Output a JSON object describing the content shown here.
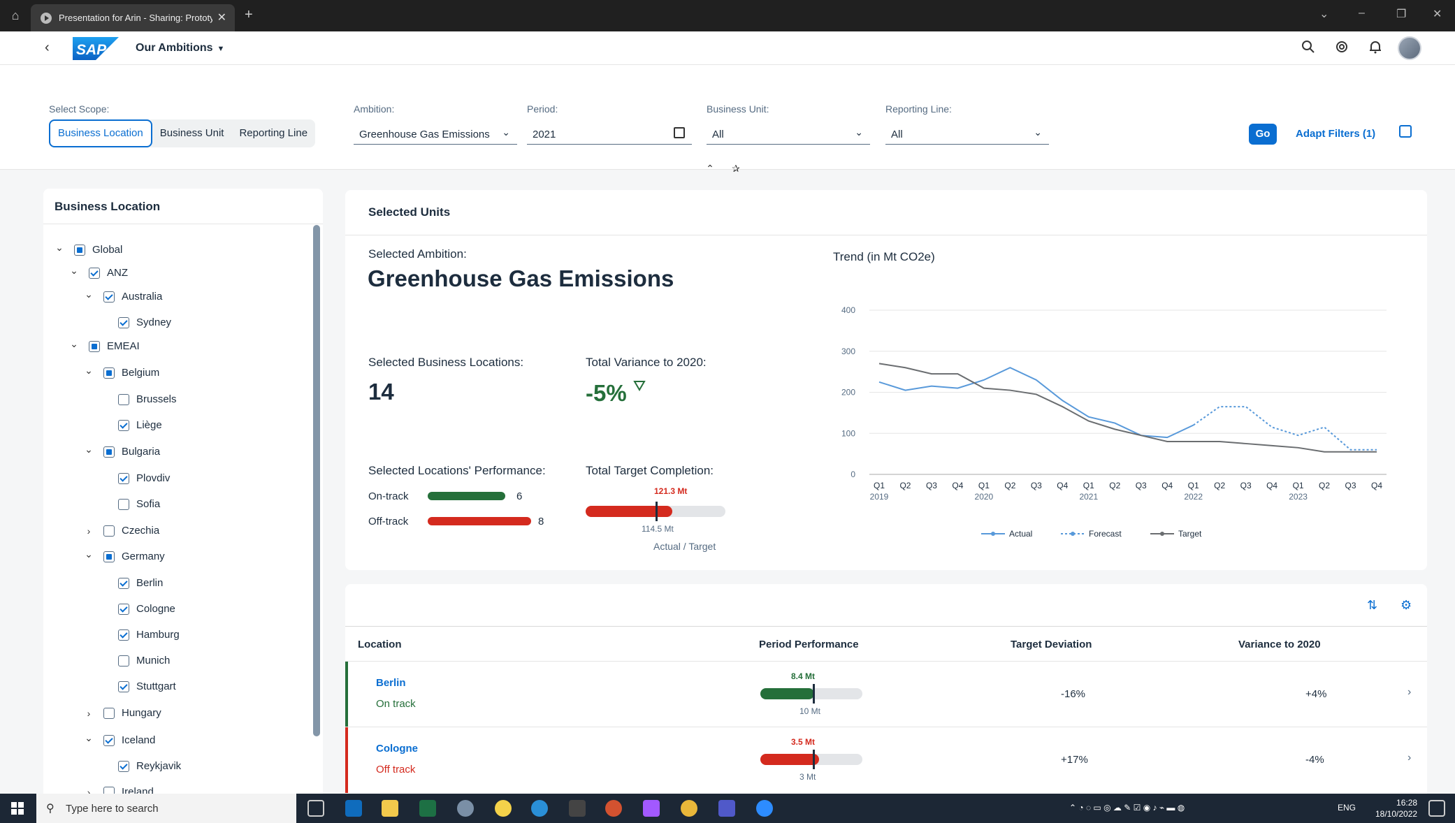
{
  "browser": {
    "tab_title": "Presentation for Arin - Sharing: Prototy",
    "home_icon": "home-icon",
    "close_glyph": "✕",
    "new_tab_glyph": "+"
  },
  "shell": {
    "back_glyph": "‹",
    "logo_text": "SAP",
    "app_title": "Our Ambitions",
    "icons": [
      "search-icon",
      "copilot-icon",
      "bell-icon"
    ]
  },
  "filters": {
    "scope_label": "Select Scope:",
    "scope_options": [
      "Business Location",
      "Business Unit",
      "Reporting Line"
    ],
    "ambition_label": "Ambition:",
    "ambition_value": "Greenhouse Gas Emissions",
    "period_label": "Period:",
    "period_value": "2021",
    "business_unit_label": "Business Unit:",
    "business_unit_value": "All",
    "reporting_line_label": "Reporting Line:",
    "reporting_line_value": "All",
    "go_label": "Go",
    "adapt_label": "Adapt Filters (1)"
  },
  "tree": {
    "title": "Business Location",
    "items": [
      {
        "label": "Global",
        "level": 0,
        "state": "partial",
        "expand": "open"
      },
      {
        "label": "ANZ",
        "level": 1,
        "state": "checked",
        "expand": "open"
      },
      {
        "label": "Australia",
        "level": 2,
        "state": "checked",
        "expand": "open"
      },
      {
        "label": "Sydney",
        "level": 3,
        "state": "checked",
        "expand": "none"
      },
      {
        "label": "EMEAI",
        "level": 1,
        "state": "partial",
        "expand": "open"
      },
      {
        "label": "Belgium",
        "level": 2,
        "state": "partial",
        "expand": "open"
      },
      {
        "label": "Brussels",
        "level": 3,
        "state": "unchecked",
        "expand": "none"
      },
      {
        "label": "Liège",
        "level": 3,
        "state": "checked",
        "expand": "none"
      },
      {
        "label": "Bulgaria",
        "level": 2,
        "state": "partial",
        "expand": "open"
      },
      {
        "label": "Plovdiv",
        "level": 3,
        "state": "checked",
        "expand": "none"
      },
      {
        "label": "Sofia",
        "level": 3,
        "state": "unchecked",
        "expand": "none"
      },
      {
        "label": "Czechia",
        "level": 2,
        "state": "unchecked",
        "expand": "closed"
      },
      {
        "label": "Germany",
        "level": 2,
        "state": "partial",
        "expand": "open"
      },
      {
        "label": "Berlin",
        "level": 3,
        "state": "checked",
        "expand": "none"
      },
      {
        "label": "Cologne",
        "level": 3,
        "state": "checked",
        "expand": "none"
      },
      {
        "label": "Hamburg",
        "level": 3,
        "state": "checked",
        "expand": "none"
      },
      {
        "label": "Munich",
        "level": 3,
        "state": "unchecked",
        "expand": "none"
      },
      {
        "label": "Stuttgart",
        "level": 3,
        "state": "checked",
        "expand": "none"
      },
      {
        "label": "Hungary",
        "level": 2,
        "state": "unchecked",
        "expand": "closed"
      },
      {
        "label": "Iceland",
        "level": 2,
        "state": "checked",
        "expand": "open"
      },
      {
        "label": "Reykjavik",
        "level": 3,
        "state": "checked",
        "expand": "none"
      },
      {
        "label": "Ireland",
        "level": 2,
        "state": "unchecked",
        "expand": "closed"
      }
    ]
  },
  "units": {
    "title": "Selected Units",
    "ambition_label": "Selected Ambition:",
    "ambition_name": "Greenhouse Gas Emissions",
    "locations_label": "Selected Business Locations:",
    "locations_value": "14",
    "variance_label": "Total Variance to 2020:",
    "variance_value": "-5%",
    "performance_label": "Selected Locations' Performance:",
    "on_track_label": "On-track",
    "on_track_value": 6,
    "off_track_label": "Off-track",
    "off_track_value": 8,
    "completion_label": "Total Target Completion:",
    "completion_actual": "121.3 Mt",
    "completion_target": "114.5 Mt",
    "completion_caption": "Actual / Target",
    "colors": {
      "green": "#256f3a",
      "red": "#d42a1e"
    }
  },
  "chart_data": {
    "type": "line",
    "title": "Trend (in Mt CO2e)",
    "x": [
      "Q1",
      "Q2",
      "Q3",
      "Q4",
      "Q1",
      "Q2",
      "Q3",
      "Q4",
      "Q1",
      "Q2",
      "Q3",
      "Q4",
      "Q1",
      "Q2",
      "Q3",
      "Q4",
      "Q1",
      "Q2",
      "Q3",
      "Q4"
    ],
    "years": [
      {
        "label": "2019",
        "index": 0
      },
      {
        "label": "2020",
        "index": 4
      },
      {
        "label": "2021",
        "index": 8
      },
      {
        "label": "2022",
        "index": 12
      },
      {
        "label": "2023",
        "index": 16
      }
    ],
    "ylim": [
      0,
      400
    ],
    "yticks": [
      0,
      100,
      200,
      300,
      400
    ],
    "grid": true,
    "legend": "bottom",
    "series": [
      {
        "name": "Actual",
        "color": "#5899da",
        "style": "solid",
        "values": [
          225,
          205,
          215,
          210,
          230,
          260,
          230,
          180,
          140,
          125,
          95,
          90,
          120,
          null,
          null,
          null,
          null,
          null,
          null,
          null
        ]
      },
      {
        "name": "Forecast",
        "color": "#5899da",
        "style": "dotted",
        "values": [
          null,
          null,
          null,
          null,
          null,
          null,
          null,
          null,
          null,
          null,
          null,
          null,
          120,
          165,
          165,
          115,
          95,
          115,
          60,
          60
        ]
      },
      {
        "name": "Target",
        "color": "#6a6d70",
        "style": "solid",
        "values": [
          270,
          260,
          245,
          245,
          210,
          205,
          195,
          165,
          130,
          110,
          95,
          80,
          80,
          80,
          75,
          70,
          65,
          55,
          55,
          55
        ]
      }
    ]
  },
  "table": {
    "columns": [
      "Location",
      "Period Performance",
      "Target Deviation",
      "Variance to 2020"
    ],
    "rows": [
      {
        "location": "Berlin",
        "status": "On track",
        "actual": "8.4 Mt",
        "target": "10 Mt",
        "fill": 0.5,
        "target_pos": 0.5,
        "deviation": "-16%",
        "variance": "+4%",
        "color": "#256f3a"
      },
      {
        "location": "Cologne",
        "status": "Off track",
        "actual": "3.5 Mt",
        "target": "3 Mt",
        "fill": 0.55,
        "target_pos": 0.5,
        "deviation": "+17%",
        "variance": "-4%",
        "color": "#d42a1e"
      }
    ]
  },
  "taskbar": {
    "search_placeholder": "Type here to search",
    "language": "ENG",
    "time": "16:28",
    "date": "18/10/2022"
  }
}
